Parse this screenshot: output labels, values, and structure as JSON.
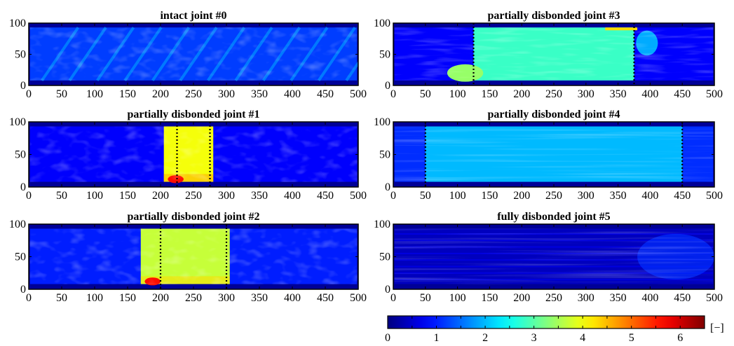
{
  "chart_data": [
    {
      "type": "heatmap",
      "title": "intact joint #0",
      "xlim": [
        0,
        500
      ],
      "ylim": [
        0,
        100
      ],
      "xticks": [
        "0",
        "50",
        "100",
        "150",
        "200",
        "250",
        "300",
        "350",
        "400",
        "450",
        "500"
      ],
      "yticks": [
        "0",
        "50",
        "100"
      ],
      "base_level": 1.2,
      "disbond_level": null,
      "disbond_x": null,
      "dotted_lines_x": [],
      "pattern": "diagonal-streaks"
    },
    {
      "type": "heatmap",
      "title": "partially disbonded joint #3",
      "xlim": [
        0,
        500
      ],
      "ylim": [
        0,
        100
      ],
      "xticks": [
        "0",
        "50",
        "100",
        "150",
        "200",
        "250",
        "300",
        "350",
        "400",
        "450",
        "500"
      ],
      "yticks": [
        "0",
        "50",
        "100"
      ],
      "base_level": 0.8,
      "disbond_level": 2.8,
      "disbond_x": [
        125,
        375
      ],
      "dotted_lines_x": [
        125,
        375
      ],
      "pattern": "uniform"
    },
    {
      "type": "heatmap",
      "title": "partially disbonded joint #1",
      "xlim": [
        0,
        500
      ],
      "ylim": [
        0,
        100
      ],
      "xticks": [
        "0",
        "50",
        "100",
        "150",
        "200",
        "250",
        "300",
        "350",
        "400",
        "450",
        "500"
      ],
      "yticks": [
        "0",
        "50",
        "100"
      ],
      "base_level": 0.8,
      "disbond_level": 4.0,
      "disbond_x": [
        205,
        280
      ],
      "dotted_lines_x": [
        225,
        275
      ],
      "pattern": "uniform"
    },
    {
      "type": "heatmap",
      "title": "partially disbonded joint #4",
      "xlim": [
        0,
        500
      ],
      "ylim": [
        0,
        100
      ],
      "xticks": [
        "0",
        "50",
        "100",
        "150",
        "200",
        "250",
        "300",
        "350",
        "400",
        "450",
        "500"
      ],
      "yticks": [
        "0",
        "50",
        "100"
      ],
      "base_level": 1.1,
      "disbond_level": 2.0,
      "disbond_x": [
        50,
        450
      ],
      "dotted_lines_x": [
        50,
        450
      ],
      "pattern": "horizontal-bands"
    },
    {
      "type": "heatmap",
      "title": "partially disbonded joint #2",
      "xlim": [
        0,
        500
      ],
      "ylim": [
        0,
        100
      ],
      "xticks": [
        "0",
        "50",
        "100",
        "150",
        "200",
        "250",
        "300",
        "350",
        "400",
        "450",
        "500"
      ],
      "yticks": [
        "0",
        "50",
        "100"
      ],
      "base_level": 1.0,
      "disbond_level": 3.7,
      "disbond_x": [
        170,
        305
      ],
      "dotted_lines_x": [
        200,
        300
      ],
      "pattern": "uniform"
    },
    {
      "type": "heatmap",
      "title": "fully disbonded joint #5",
      "xlim": [
        0,
        500
      ],
      "ylim": [
        0,
        100
      ],
      "xticks": [
        "0",
        "50",
        "100",
        "150",
        "200",
        "250",
        "300",
        "350",
        "400",
        "450",
        "500"
      ],
      "yticks": [
        "0",
        "50",
        "100"
      ],
      "base_level": 0.4,
      "disbond_level": null,
      "disbond_x": null,
      "dotted_lines_x": [],
      "pattern": "faint-streaks"
    }
  ],
  "colorbar": {
    "min": 0,
    "max": 6.5,
    "ticks": [
      "0",
      "1",
      "2",
      "3",
      "4",
      "5",
      "6"
    ],
    "unit": "[−]",
    "colormap": "jet"
  }
}
